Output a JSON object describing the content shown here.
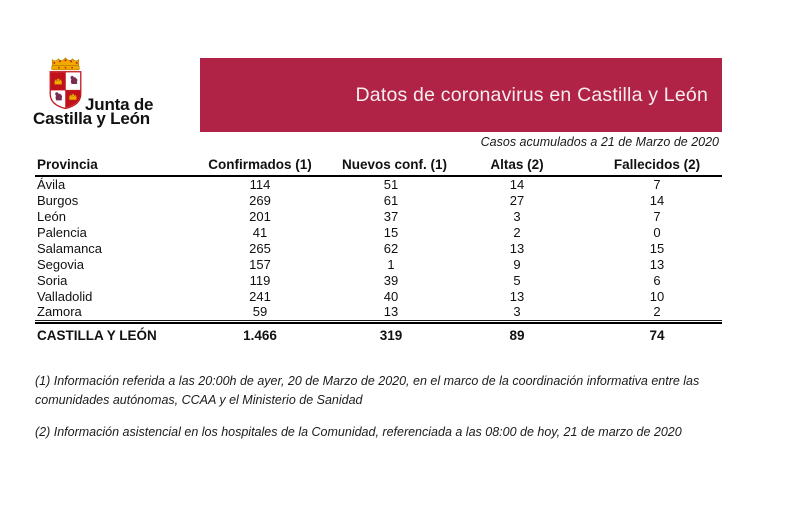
{
  "logo": {
    "line1": "Junta de",
    "line2": "Castilla y León"
  },
  "banner": {
    "title": "Datos de coronavirus en Castilla y León",
    "background": "#b12346",
    "text_color": "#f6edef"
  },
  "caption": "Casos acumulados a 21 de Marzo de 2020",
  "table": {
    "columns": [
      "Provincia",
      "Confirmados (1)",
      "Nuevos conf. (1)",
      "Altas (2)",
      "Fallecidos (2)"
    ],
    "rows": [
      {
        "provincia": "Ávila",
        "values": [
          "114",
          "51",
          "14",
          "7"
        ]
      },
      {
        "provincia": "Burgos",
        "values": [
          "269",
          "61",
          "27",
          "14"
        ]
      },
      {
        "provincia": "León",
        "values": [
          "201",
          "37",
          "3",
          "7"
        ]
      },
      {
        "provincia": "Palencia",
        "values": [
          "41",
          "15",
          "2",
          "0"
        ]
      },
      {
        "provincia": "Salamanca",
        "values": [
          "265",
          "62",
          "13",
          "15"
        ]
      },
      {
        "provincia": "Segovia",
        "values": [
          "157",
          "1",
          "9",
          "13"
        ]
      },
      {
        "provincia": "Soria",
        "values": [
          "119",
          "39",
          "5",
          "6"
        ]
      },
      {
        "provincia": "Valladolid",
        "values": [
          "241",
          "40",
          "13",
          "10"
        ]
      },
      {
        "provincia": "Zamora",
        "values": [
          "59",
          "13",
          "3",
          "2"
        ]
      }
    ],
    "total": {
      "label": "CASTILLA Y LEÓN",
      "values": [
        "1.466",
        "319",
        "89",
        "74"
      ]
    }
  },
  "footnotes": [
    "(1) Información referida a las 20:00h de ayer, 20 de Marzo de 2020, en el marco de la coordinación informativa entre las comunidades autónomas, CCAA y el Ministerio de Sanidad",
    "(2) Información asistencial en los hospitales de la Comunidad, referenciada a las 08:00 de hoy, 21 de marzo de 2020"
  ],
  "colors": {
    "banner": "#b12346",
    "shield_red": "#c1121c",
    "castle_gold": "#f2a900",
    "lion_purple": "#7b2d52"
  }
}
